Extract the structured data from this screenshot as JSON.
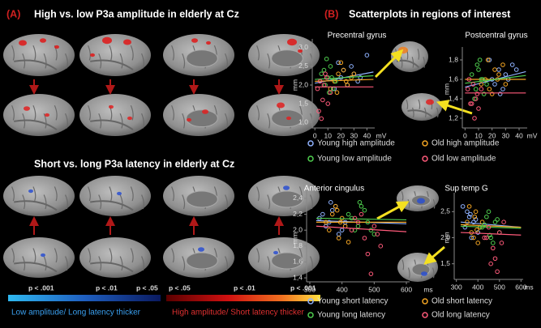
{
  "panel_a": {
    "label": "(A)",
    "title_top": "High vs. low P3a amplitude in elderly at Cz",
    "title_bottom": "Short vs. long P3a latency in elderly at Cz",
    "colorbar": {
      "left_labels": [
        "p < .001",
        "p < .01",
        "p < .05"
      ],
      "right_labels": [
        "p < .05",
        "p < .01",
        "p < .001"
      ],
      "left_caption": "Low amplitude/ Long latency thicker",
      "right_caption": "High amplitude/ Short latency thicker"
    }
  },
  "panel_b": {
    "label": "(B)",
    "title": "Scatterplots in regions of interest"
  },
  "chart_data": [
    {
      "type": "scatter",
      "title": "Precentral gyrus",
      "x_label": "mV",
      "y_label": "mm",
      "xlim": [
        -2,
        46
      ],
      "ylim": [
        0.85,
        3.15
      ],
      "xticks": [
        0,
        10,
        20,
        30,
        40
      ],
      "yticks": [
        {
          "value": 3.0,
          "label": "3,0"
        },
        {
          "value": 2.5,
          "label": "2,5"
        },
        {
          "value": 2.0,
          "label": "2,0"
        },
        {
          "value": 1.5,
          "label": "1,5"
        },
        {
          "value": 1.0,
          "label": "1,0"
        }
      ],
      "series": [
        {
          "name": "Young high amplitude",
          "color": "#8fb2ff",
          "x": [
            20,
            22,
            25,
            28,
            30,
            33,
            18,
            35,
            40,
            15
          ],
          "values": [
            2.2,
            2.4,
            2.0,
            2.5,
            2.3,
            2.1,
            2.6,
            2.2,
            2.8,
            1.9
          ],
          "fit": {
            "x": [
              0,
              45
            ],
            "y": [
              2.05,
              2.35
            ]
          }
        },
        {
          "name": "Old high amplitude",
          "color": "#f5a623",
          "x": [
            15,
            18,
            22,
            25,
            12,
            28,
            20,
            30,
            17,
            24
          ],
          "values": [
            2.1,
            2.3,
            2.4,
            2.0,
            1.9,
            2.2,
            2.6,
            2.3,
            1.8,
            2.1
          ],
          "fit": {
            "x": [
              0,
              45
            ],
            "y": [
              2.1,
              2.15
            ]
          }
        },
        {
          "name": "Young low amplitude",
          "color": "#4fcf4f",
          "x": [
            5,
            8,
            10,
            12,
            14,
            9,
            16,
            11,
            7,
            13
          ],
          "values": [
            2.3,
            2.0,
            2.2,
            2.5,
            1.9,
            2.7,
            2.1,
            1.8,
            2.4,
            2.2
          ],
          "fit": {
            "x": [
              0,
              45
            ],
            "y": [
              2.15,
              2.25
            ]
          }
        },
        {
          "name": "Old low amplitude",
          "color": "#ff5a7a",
          "x": [
            2,
            4,
            6,
            8,
            10,
            3,
            7,
            9,
            5,
            12
          ],
          "values": [
            1.9,
            2.1,
            1.6,
            2.3,
            1.5,
            1.3,
            2.0,
            2.2,
            1.1,
            1.8
          ],
          "fit": {
            "x": [
              0,
              45
            ],
            "y": [
              1.95,
              1.95
            ]
          }
        }
      ]
    },
    {
      "type": "scatter",
      "title": "Postcentral gyrus",
      "x_label": "mV",
      "y_label": "mm",
      "xlim": [
        -2,
        46
      ],
      "ylim": [
        1.1,
        1.9
      ],
      "xticks": [
        0,
        10,
        20,
        30,
        40
      ],
      "yticks": [
        {
          "value": 1.8,
          "label": "1,8"
        },
        {
          "value": 1.6,
          "label": "1,6"
        },
        {
          "value": 1.4,
          "label": "1,4"
        },
        {
          "value": 1.2,
          "label": "1,2"
        }
      ],
      "series": [
        {
          "color": "#8fb2ff",
          "x": [
            20,
            25,
            28,
            30,
            35,
            22,
            18,
            32,
            26,
            38
          ],
          "values": [
            1.6,
            1.7,
            1.5,
            1.65,
            1.75,
            1.55,
            1.8,
            1.6,
            1.45,
            1.7
          ],
          "fit": {
            "x": [
              0,
              45
            ],
            "y": [
              1.52,
              1.68
            ]
          }
        },
        {
          "color": "#f5a623",
          "x": [
            15,
            18,
            22,
            25,
            12,
            28,
            20,
            24,
            17,
            30
          ],
          "values": [
            1.6,
            1.5,
            1.7,
            1.65,
            1.55,
            1.75,
            1.45,
            1.6,
            1.8,
            1.55
          ],
          "fit": {
            "x": [
              0,
              45
            ],
            "y": [
              1.6,
              1.6
            ]
          }
        },
        {
          "color": "#4fcf4f",
          "x": [
            5,
            8,
            10,
            12,
            14,
            9,
            16,
            11,
            7,
            13
          ],
          "values": [
            1.65,
            1.5,
            1.7,
            1.6,
            1.45,
            1.75,
            1.55,
            1.8,
            1.4,
            1.6
          ],
          "fit": {
            "x": [
              0,
              45
            ],
            "y": [
              1.56,
              1.64
            ]
          }
        },
        {
          "color": "#ff5a7a",
          "x": [
            2,
            4,
            6,
            8,
            10,
            3,
            7,
            9,
            5,
            12
          ],
          "values": [
            1.5,
            1.35,
            1.55,
            1.4,
            1.3,
            1.6,
            1.2,
            1.45,
            1.35,
            1.5
          ],
          "fit": {
            "x": [
              0,
              45
            ],
            "y": [
              1.46,
              1.46
            ]
          }
        }
      ]
    },
    {
      "type": "scatter",
      "title": "Anterior cingulus",
      "x_label": "ms",
      "y_label": "mm",
      "xlim": [
        290,
        610
      ],
      "ylim": [
        1.35,
        2.45
      ],
      "xticks": [
        300,
        400,
        500,
        600
      ],
      "yticks": [
        {
          "value": 2.4,
          "label": "2,4"
        },
        {
          "value": 2.2,
          "label": "2,2"
        },
        {
          "value": 2.0,
          "label": "2,0"
        },
        {
          "value": 1.8,
          "label": "1,8"
        },
        {
          "value": 1.6,
          "label": "1,6"
        },
        {
          "value": 1.4,
          "label": "1,4"
        }
      ],
      "series": [
        {
          "name": "Young short latency",
          "color": "#8fb2ff",
          "x": [
            340,
            360,
            380,
            400,
            350,
            370,
            390,
            330,
            410,
            365
          ],
          "values": [
            2.2,
            2.1,
            2.3,
            2.0,
            2.05,
            2.25,
            1.95,
            2.15,
            2.1,
            2.35
          ],
          "fit": {
            "x": [
              320,
              600
            ],
            "y": [
              2.12,
              2.08
            ]
          }
        },
        {
          "name": "Old short latency",
          "color": "#f5a623",
          "x": [
            350,
            370,
            390,
            410,
            380,
            360,
            400,
            420,
            385,
            395
          ],
          "values": [
            2.1,
            2.2,
            1.9,
            2.05,
            2.3,
            2.0,
            2.15,
            1.85,
            2.25,
            2.1
          ],
          "fit": {
            "x": [
              320,
              600
            ],
            "y": [
              2.1,
              2.1
            ]
          }
        },
        {
          "name": "Young long latency",
          "color": "#4fcf4f",
          "x": [
            420,
            440,
            460,
            480,
            500,
            450,
            470,
            430,
            490,
            455
          ],
          "values": [
            2.2,
            2.0,
            2.3,
            2.1,
            1.95,
            2.05,
            2.25,
            2.15,
            2.0,
            2.35
          ],
          "fit": {
            "x": [
              320,
              600
            ],
            "y": [
              2.15,
              2.13
            ]
          }
        },
        {
          "name": "Old long latency",
          "color": "#ff5a7a",
          "x": [
            430,
            450,
            470,
            500,
            520,
            460,
            480,
            440,
            510,
            490
          ],
          "values": [
            2.0,
            2.1,
            1.9,
            2.05,
            1.8,
            2.2,
            1.7,
            2.15,
            1.95,
            1.45
          ],
          "fit": {
            "x": [
              320,
              600
            ],
            "y": [
              2.05,
              1.98
            ]
          }
        }
      ]
    },
    {
      "type": "scatter",
      "title": "Sup temp G",
      "x_label": "ms",
      "y_label": "mm",
      "xlim": [
        290,
        610
      ],
      "ylim": [
        1.2,
        2.8
      ],
      "xticks": [
        300,
        400,
        500,
        600
      ],
      "yticks": [
        {
          "value": 2.5,
          "label": "2,5"
        },
        {
          "value": 2.0,
          "label": "2,0"
        },
        {
          "value": 1.5,
          "label": "1,5"
        }
      ],
      "series": [
        {
          "color": "#8fb2ff",
          "x": [
            340,
            360,
            380,
            400,
            350,
            370,
            390,
            330,
            410,
            365
          ],
          "values": [
            2.2,
            2.4,
            2.3,
            2.1,
            2.5,
            2.0,
            2.35,
            2.6,
            2.2,
            2.45
          ],
          "fit": {
            "x": [
              320,
              600
            ],
            "y": [
              2.3,
              2.2
            ]
          }
        },
        {
          "color": "#f5a623",
          "x": [
            350,
            370,
            390,
            410,
            380,
            360,
            400,
            420,
            385,
            395
          ],
          "values": [
            2.3,
            2.1,
            2.5,
            2.2,
            2.0,
            2.6,
            1.9,
            2.3,
            2.4,
            2.15
          ],
          "fit": {
            "x": [
              320,
              600
            ],
            "y": [
              2.25,
              2.2
            ]
          }
        },
        {
          "color": "#4fcf4f",
          "x": [
            420,
            440,
            460,
            480,
            500,
            450,
            470,
            430,
            490,
            455
          ],
          "values": [
            2.2,
            2.4,
            2.0,
            2.3,
            2.1,
            2.5,
            1.9,
            2.25,
            2.35,
            2.05
          ],
          "fit": {
            "x": [
              320,
              600
            ],
            "y": [
              2.22,
              2.18
            ]
          }
        },
        {
          "color": "#ff5a7a",
          "x": [
            430,
            450,
            470,
            500,
            520,
            460,
            480,
            440,
            510,
            490
          ],
          "values": [
            2.0,
            2.2,
            1.8,
            2.1,
            2.3,
            1.5,
            1.6,
            2.0,
            1.9,
            1.35
          ],
          "fit": {
            "x": [
              320,
              600
            ],
            "y": [
              2.1,
              2.05
            ]
          }
        }
      ]
    }
  ]
}
